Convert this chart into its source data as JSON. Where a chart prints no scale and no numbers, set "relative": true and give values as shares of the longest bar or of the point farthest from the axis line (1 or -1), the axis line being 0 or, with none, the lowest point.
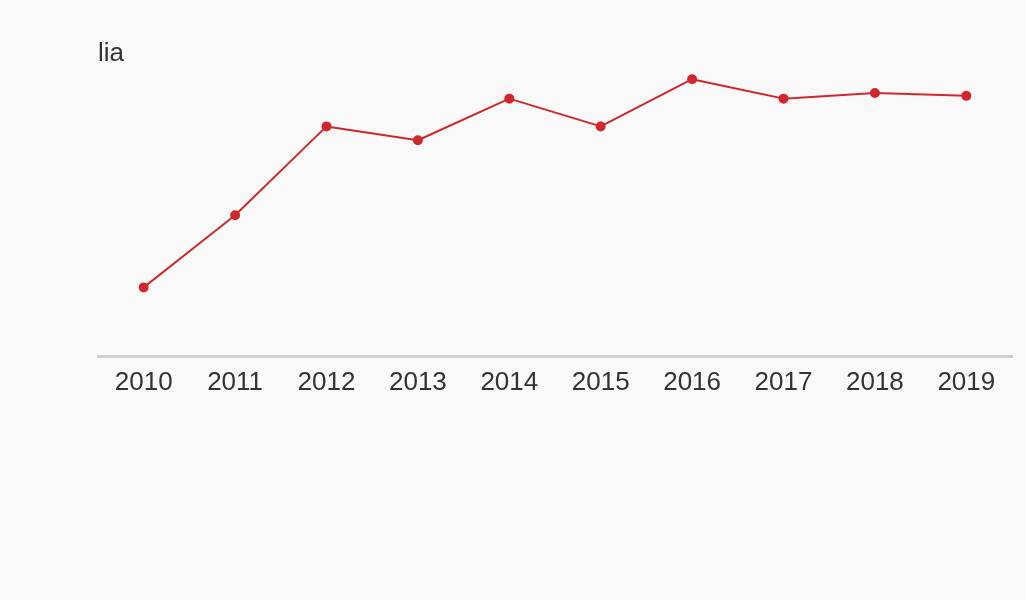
{
  "chart_data": {
    "type": "line",
    "title": "lia",
    "relative": true,
    "categories": [
      "2010",
      "2011",
      "2012",
      "2013",
      "2014",
      "2015",
      "2016",
      "2017",
      "2018",
      "2019"
    ],
    "series": [
      {
        "color": "#d0282e",
        "values": [
          0.25,
          0.51,
          0.83,
          0.78,
          0.93,
          0.83,
          1,
          0.93,
          0.95,
          0.94
        ]
      }
    ],
    "marker": "circle",
    "grid": false,
    "legend": false
  }
}
